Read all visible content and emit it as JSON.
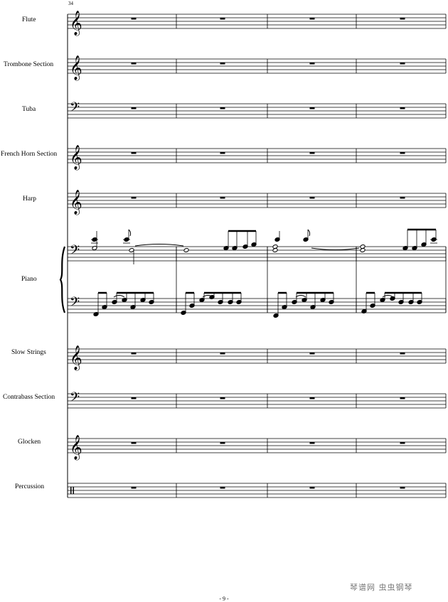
{
  "score": {
    "measure_number": "34",
    "page_number": "- 9 -",
    "watermark": "琴谱网 虫虫钢琴",
    "staves": [
      {
        "label": "Flute",
        "clef": "treble",
        "rest_measures": 4
      },
      {
        "label": "Trombone Section",
        "clef": "treble",
        "rest_measures": 4
      },
      {
        "label": "Tuba",
        "clef": "bass",
        "rest_measures": 4
      },
      {
        "label": "French Horn Section",
        "clef": "treble",
        "rest_measures": 4
      },
      {
        "label": "Harp",
        "clef": "treble",
        "rest_measures": 4
      },
      {
        "label": "Piano",
        "clef": "bass",
        "grand_staff": true
      },
      {
        "label": "Slow Strings",
        "clef": "treble",
        "rest_measures": 4
      },
      {
        "label": "Contrabass Section",
        "clef": "bass",
        "rest_measures": 4
      },
      {
        "label": "Glocken",
        "clef": "treble",
        "rest_measures": 4
      },
      {
        "label": "Percussion",
        "clef": "percussion",
        "rest_measures": 4
      }
    ]
  }
}
